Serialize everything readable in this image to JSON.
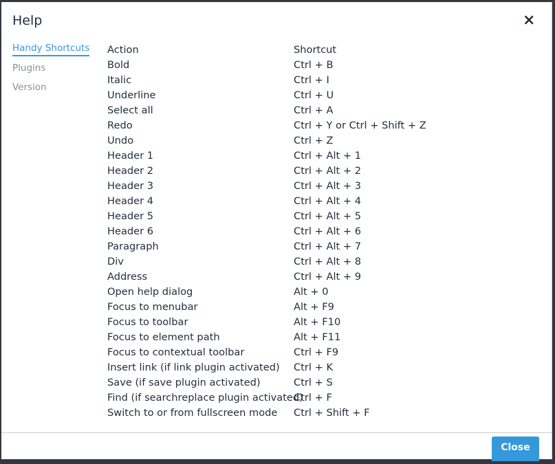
{
  "dialog": {
    "title": "Help",
    "close_label": "Close",
    "close_icon": "×"
  },
  "nav": [
    {
      "label": "Handy Shortcuts"
    },
    {
      "label": "Plugins"
    },
    {
      "label": "Version"
    }
  ],
  "table": {
    "headers": [
      "Action",
      "Shortcut"
    ],
    "rows": [
      [
        "Bold",
        "Ctrl + B"
      ],
      [
        "Italic",
        "Ctrl + I"
      ],
      [
        "Underline",
        "Ctrl + U"
      ],
      [
        "Select all",
        "Ctrl + A"
      ],
      [
        "Redo",
        "Ctrl + Y or Ctrl + Shift + Z"
      ],
      [
        "Undo",
        "Ctrl + Z"
      ],
      [
        "Header 1",
        "Ctrl + Alt + 1"
      ],
      [
        "Header 2",
        "Ctrl + Alt + 2"
      ],
      [
        "Header 3",
        "Ctrl + Alt + 3"
      ],
      [
        "Header 4",
        "Ctrl + Alt + 4"
      ],
      [
        "Header 5",
        "Ctrl + Alt + 5"
      ],
      [
        "Header 6",
        "Ctrl + Alt + 6"
      ],
      [
        "Paragraph",
        "Ctrl + Alt + 7"
      ],
      [
        "Div",
        "Ctrl + Alt + 8"
      ],
      [
        "Address",
        "Ctrl + Alt + 9"
      ],
      [
        "Open help dialog",
        "Alt + 0"
      ],
      [
        "Focus to menubar",
        "Alt + F9"
      ],
      [
        "Focus to toolbar",
        "Alt + F10"
      ],
      [
        "Focus to element path",
        "Alt + F11"
      ],
      [
        "Focus to contextual toolbar",
        "Ctrl + F9"
      ],
      [
        "Insert link (if link plugin activated)",
        "Ctrl + K"
      ],
      [
        "Save (if save plugin activated)",
        "Ctrl + S"
      ],
      [
        "Find (if searchreplace plugin activated)",
        "Ctrl + F"
      ],
      [
        "Switch to or from fullscreen mode",
        "Ctrl + Shift + F"
      ]
    ]
  }
}
